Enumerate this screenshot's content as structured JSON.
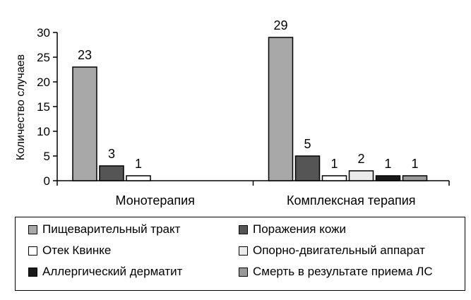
{
  "chart_data": {
    "type": "bar",
    "ylabel": "Количество случаев",
    "ylim": [
      0,
      30
    ],
    "yticks": [
      0,
      5,
      10,
      15,
      20,
      25,
      30
    ],
    "categories": [
      "Монотерапия",
      "Комплексная терапия"
    ],
    "series": [
      {
        "name": "Пищеварительный тракт",
        "color": "#a8a8a8",
        "values": [
          23,
          29
        ]
      },
      {
        "name": "Поражения кожи",
        "color": "#555555",
        "values": [
          3,
          5
        ]
      },
      {
        "name": "Отек Квинке",
        "color": "#ffffff",
        "values": [
          1,
          1
        ]
      },
      {
        "name": "Опорно-двигательный аппарат",
        "color": "#ebebeb",
        "values": [
          null,
          2
        ]
      },
      {
        "name": "Аллергический дерматит",
        "color": "#1a1a1a",
        "values": [
          null,
          1
        ]
      },
      {
        "name": "Смерть в результате приема ЛС",
        "color": "#9a9a9a",
        "values": [
          null,
          1
        ]
      }
    ],
    "legend_position": "bottom",
    "grid": false
  }
}
